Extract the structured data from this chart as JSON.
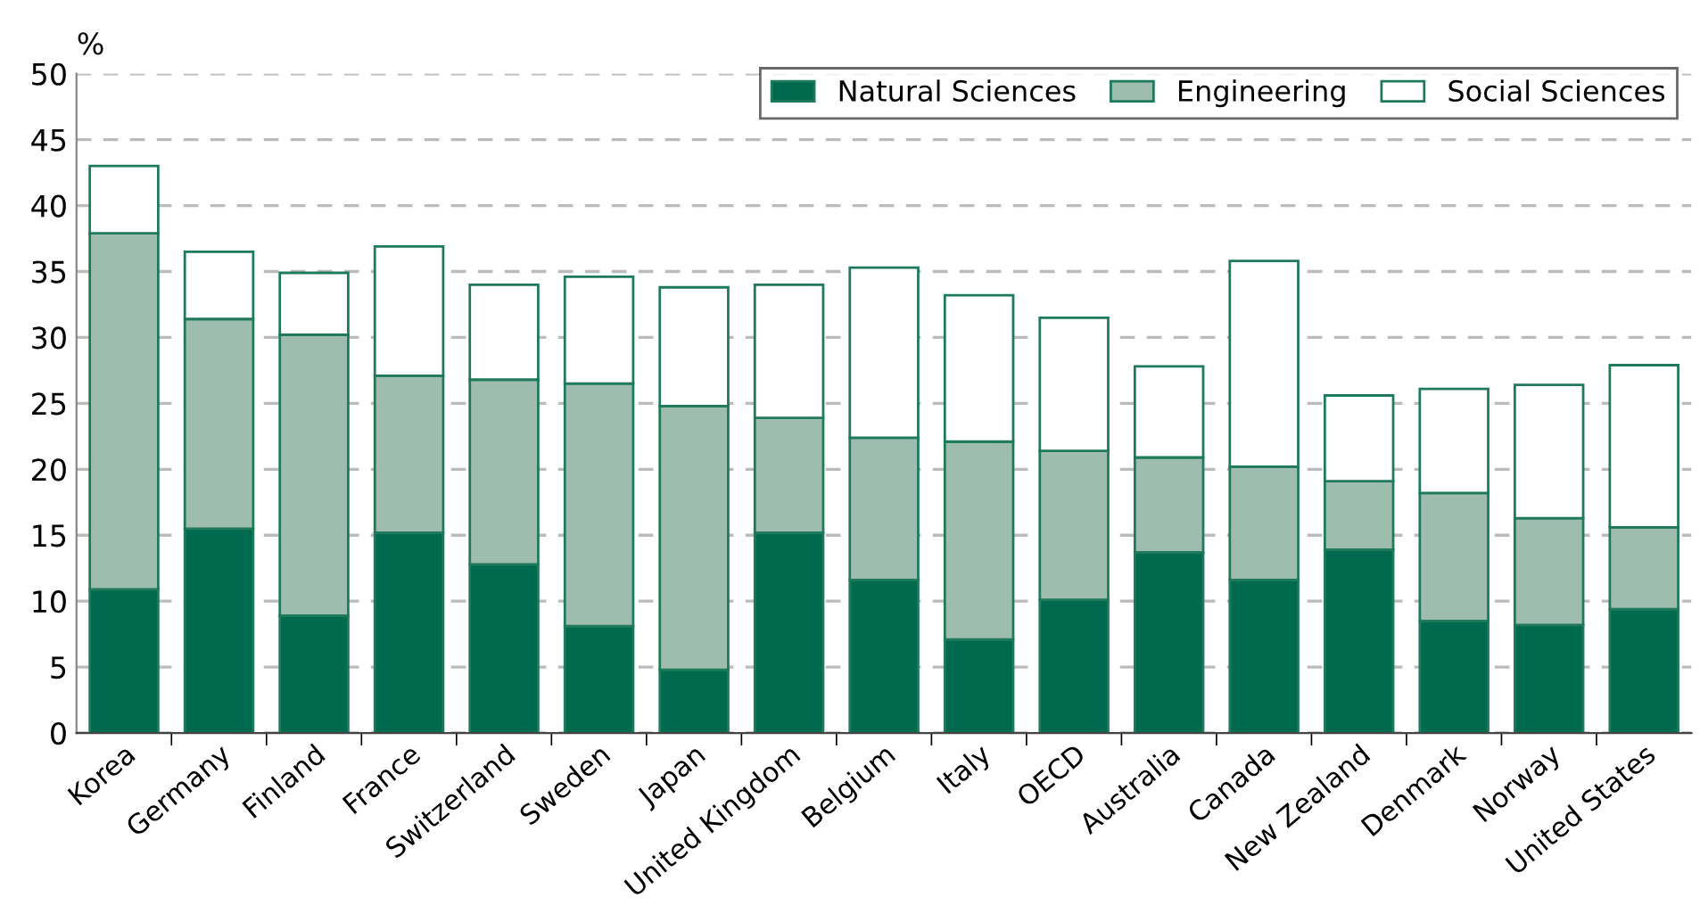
{
  "chart_data": {
    "type": "bar",
    "stacked": true,
    "ylabel": "%",
    "categories": [
      "Korea",
      "Germany",
      "Finland",
      "France",
      "Switzerland",
      "Sweden",
      "Japan",
      "United Kingdom",
      "Belgium",
      "Italy",
      "OECD",
      "Australia",
      "Canada",
      "New Zealand",
      "Denmark",
      "Norway",
      "United States"
    ],
    "series": [
      {
        "name": "Natural Sciences",
        "color": "#006a4e",
        "values": [
          10.9,
          15.5,
          8.9,
          15.2,
          12.8,
          8.1,
          4.8,
          15.2,
          11.6,
          7.1,
          10.1,
          13.7,
          11.6,
          13.9,
          8.5,
          8.2,
          9.4
        ]
      },
      {
        "name": "Engineering",
        "color": "#9ebdaf",
        "values": [
          27.0,
          15.9,
          21.3,
          11.9,
          14.0,
          18.4,
          20.0,
          8.7,
          10.8,
          15.0,
          11.3,
          7.2,
          8.6,
          5.2,
          9.7,
          8.1,
          6.2
        ]
      },
      {
        "name": "Social Sciences",
        "color": "#ffffff",
        "values": [
          5.1,
          5.1,
          4.7,
          9.8,
          7.2,
          8.1,
          9.0,
          10.1,
          12.9,
          11.1,
          10.1,
          6.9,
          15.6,
          6.5,
          7.9,
          10.1,
          12.3
        ]
      }
    ],
    "ylim": [
      0,
      50
    ],
    "yticks": [
      0,
      5,
      10,
      15,
      20,
      25,
      30,
      35,
      40,
      45,
      50
    ],
    "grid": "y",
    "legend": "top right"
  }
}
